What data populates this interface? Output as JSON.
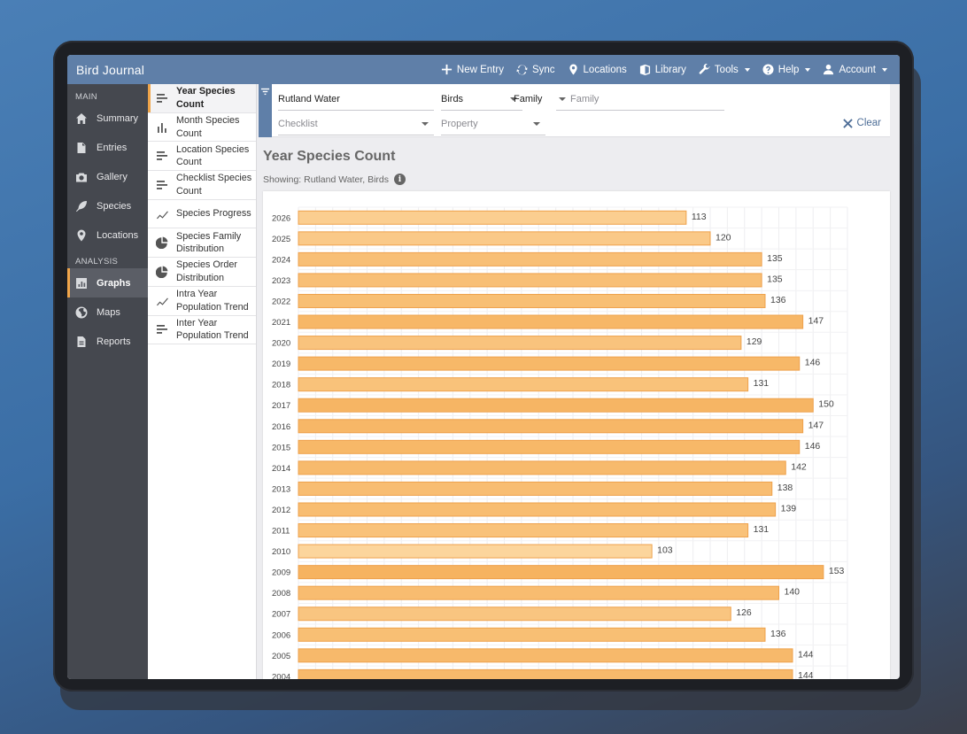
{
  "app": {
    "title": "Bird Journal"
  },
  "topnav": [
    {
      "label": "New Entry",
      "icon": "plus-icon",
      "caret": false
    },
    {
      "label": "Sync",
      "icon": "sync-icon",
      "caret": false
    },
    {
      "label": "Locations",
      "icon": "map-pin-icon",
      "caret": false
    },
    {
      "label": "Library",
      "icon": "book-icon",
      "caret": false
    },
    {
      "label": "Tools",
      "icon": "wrench-icon",
      "caret": true
    },
    {
      "label": "Help",
      "icon": "help-icon",
      "caret": true
    },
    {
      "label": "Account",
      "icon": "user-icon",
      "caret": true
    }
  ],
  "sidebar": {
    "main_label": "MAIN",
    "main_items": [
      {
        "label": "Summary",
        "icon": "home-icon"
      },
      {
        "label": "Entries",
        "icon": "document-icon"
      },
      {
        "label": "Gallery",
        "icon": "camera-icon"
      },
      {
        "label": "Species",
        "icon": "feather-icon"
      },
      {
        "label": "Locations",
        "icon": "map-pin-icon"
      }
    ],
    "analysis_label": "ANALYSIS",
    "analysis_items": [
      {
        "label": "Graphs",
        "icon": "bar-chart-icon",
        "active": true
      },
      {
        "label": "Maps",
        "icon": "globe-icon"
      },
      {
        "label": "Reports",
        "icon": "report-icon"
      }
    ]
  },
  "graphs": [
    {
      "label": "Year Species Count",
      "icon": "horizontal-bars-icon",
      "active": true
    },
    {
      "label": "Month Species Count",
      "icon": "vertical-bars-icon"
    },
    {
      "label": "Location Species Count",
      "icon": "horizontal-bars-icon"
    },
    {
      "label": "Checklist Species Count",
      "icon": "horizontal-bars-icon"
    },
    {
      "label": "Species Progress",
      "icon": "line-chart-icon"
    },
    {
      "label": "Species Family Distribution",
      "icon": "pie-chart-icon"
    },
    {
      "label": "Species Order Distribution",
      "icon": "pie-chart-icon"
    },
    {
      "label": "Intra Year Population Trend",
      "icon": "line-chart-icon"
    },
    {
      "label": "Inter Year Population Trend",
      "icon": "horizontal-bars-icon"
    }
  ],
  "filters": {
    "location": "Rutland Water",
    "taxon": "Birds",
    "group_by": "Family",
    "family_placeholder": "Family",
    "checklist_placeholder": "Checklist",
    "property_placeholder": "Property",
    "clear_label": "Clear"
  },
  "page": {
    "title": "Year Species Count",
    "showing": "Showing: Rutland Water, Birds",
    "info": "i"
  },
  "colors": {
    "bar_fill_low": "#fcd59c",
    "bar_fill_high": "#f6b360",
    "bar_stroke": "#eea14c",
    "accent": "#f0a54a",
    "topbar": "#5f7fa8"
  },
  "chart_data": {
    "type": "bar",
    "orientation": "horizontal",
    "categories": [
      "2026",
      "2025",
      "2024",
      "2023",
      "2022",
      "2021",
      "2020",
      "2019",
      "2018",
      "2017",
      "2016",
      "2015",
      "2014",
      "2013",
      "2012",
      "2011",
      "2010",
      "2009",
      "2008",
      "2007",
      "2006",
      "2005",
      "2004"
    ],
    "values": [
      113,
      120,
      135,
      135,
      136,
      147,
      129,
      146,
      131,
      150,
      147,
      146,
      142,
      138,
      139,
      131,
      103,
      153,
      140,
      126,
      136,
      144,
      144
    ],
    "xlim": [
      0,
      160
    ],
    "grid": true,
    "data_labels": true
  }
}
